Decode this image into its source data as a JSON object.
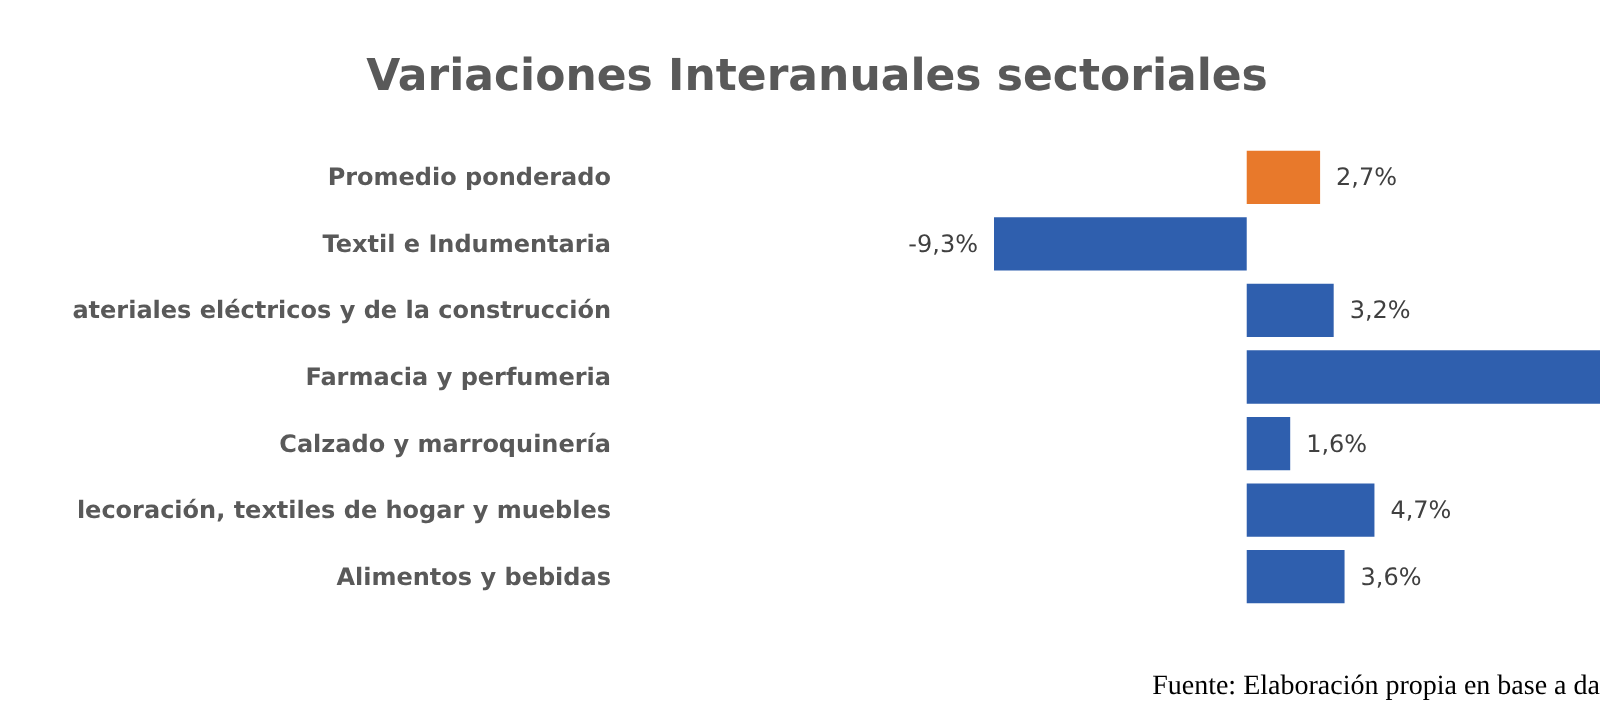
{
  "chart_data": {
    "type": "bar",
    "orientation": "horizontal",
    "title": "Variaciones Interanuales sectoriales",
    "categories": [
      "Promedio ponderado",
      "Textil e Indumentaria",
      "ateriales eléctricos y  de la construcción",
      "Farmacia y perfumeria",
      "Calzado y marroquinería",
      "lecoración, textiles de hogar y muebles",
      "Alimentos y bebidas"
    ],
    "values": [
      2.7,
      -9.3,
      3.2,
      13,
      1.6,
      4.7,
      3.6
    ],
    "value_labels": [
      "2,7%",
      "-9,3%",
      "3,2%",
      null,
      "1,6%",
      "4,7%",
      "3,6%"
    ],
    "colors": [
      "#e8792b",
      "#2f5fae",
      "#2f5fae",
      "#2f5fae",
      "#2f5fae",
      "#2f5fae",
      "#2f5fae"
    ],
    "annotations": [
      "Fuente: Elaboración propia en base a da"
    ]
  }
}
